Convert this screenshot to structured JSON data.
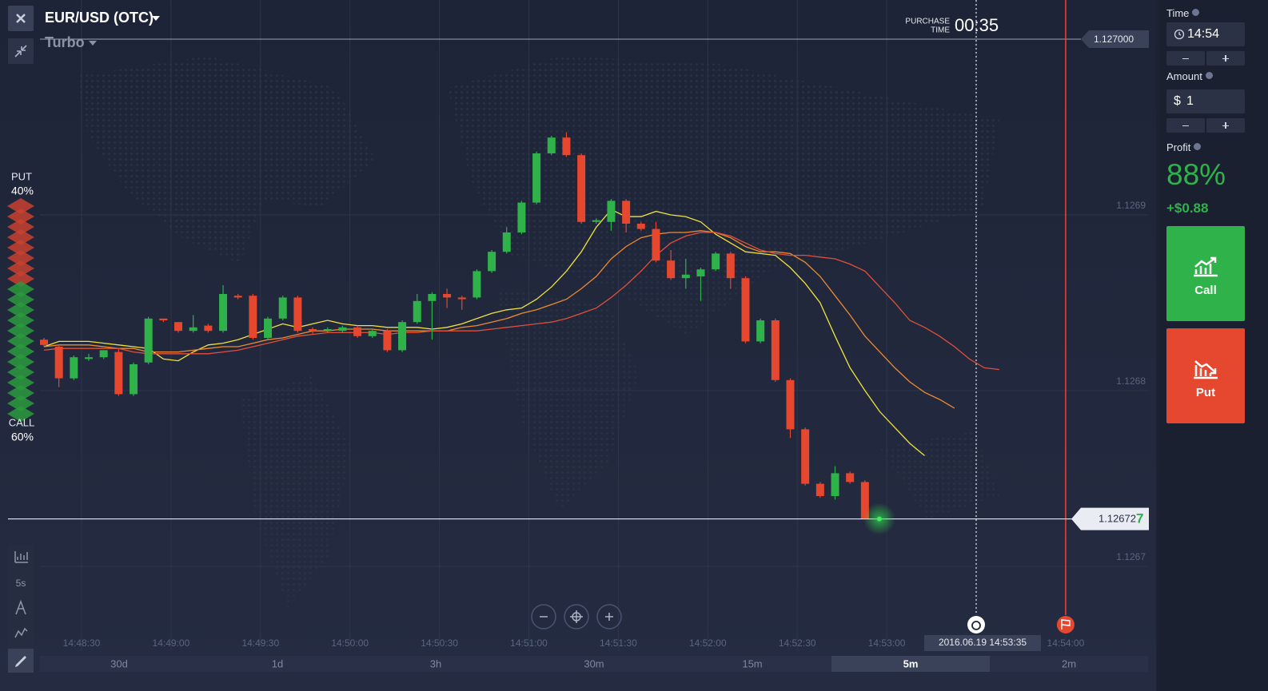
{
  "header": {
    "symbol": "EUR/USD (OTC)",
    "mode": "Turbo"
  },
  "sentiment": {
    "put_label": "PUT",
    "put_percent": "40%",
    "call_label": "CALL",
    "call_percent": "60%"
  },
  "toolbar": {
    "interval": "5s"
  },
  "timeframes": [
    "30d",
    "1d",
    "3h",
    "30m",
    "15m",
    "5m",
    "2m"
  ],
  "selected_timeframe": 5,
  "panel": {
    "time_label": "Time",
    "time_value": "14:54",
    "amount_label": "Amount",
    "currency": "$",
    "amount_value": "1",
    "profit_label": "Profit",
    "profit_percent": "88%",
    "profit_amount": "+$0.88",
    "call_button": "Call",
    "put_button": "Put"
  },
  "chart_data": {
    "type": "candlestick",
    "open": [
      1.126829,
      1.126825,
      1.126807,
      1.126818,
      1.126819,
      1.126822,
      1.126798,
      1.126816,
      1.126841,
      1.126839,
      1.126834,
      1.126837,
      1.126834,
      1.126854,
      1.126854,
      1.12683,
      1.126841,
      1.126853,
      1.126835,
      1.126834,
      1.126834,
      1.126836,
      1.126831,
      1.126834,
      1.126823,
      1.126839,
      1.126851,
      1.126855,
      1.126853,
      1.126853,
      1.126868,
      1.126879,
      1.12689,
      1.126907,
      1.126935,
      1.126944,
      1.126934,
      1.126896,
      1.126896,
      1.126908,
      1.126895,
      1.126892,
      1.126874,
      1.126864,
      1.126865,
      1.126869,
      1.126878,
      1.126864,
      1.126828,
      1.12684,
      1.126806,
      1.126778,
      1.126747,
      1.12674,
      1.126753,
      1.126748
    ],
    "high": [
      1.12683,
      1.126826,
      1.12682,
      1.126821,
      1.126823,
      1.126824,
      1.126816,
      1.126842,
      1.126841,
      1.126839,
      1.126843,
      1.126838,
      1.12686,
      1.126855,
      1.126855,
      1.126842,
      1.126854,
      1.126854,
      1.126836,
      1.126836,
      1.126837,
      1.126837,
      1.126835,
      1.126835,
      1.12684,
      1.126855,
      1.126856,
      1.126858,
      1.126854,
      1.126869,
      1.12688,
      1.126893,
      1.126908,
      1.126936,
      1.126945,
      1.126947,
      1.126935,
      1.126898,
      1.126909,
      1.126909,
      1.126896,
      1.126896,
      1.12688,
      1.126875,
      1.12687,
      1.126879,
      1.126879,
      1.126865,
      1.126841,
      1.126841,
      1.126807,
      1.126779,
      1.126748,
      1.126757,
      1.126754,
      1.126749
    ],
    "low": [
      1.126825,
      1.126802,
      1.126806,
      1.126817,
      1.126818,
      1.126797,
      1.126797,
      1.126815,
      1.126839,
      1.126833,
      1.126833,
      1.126833,
      1.126833,
      1.126852,
      1.126829,
      1.126829,
      1.12684,
      1.126833,
      1.126832,
      1.126833,
      1.126833,
      1.12683,
      1.12683,
      1.126822,
      1.126822,
      1.126838,
      1.126829,
      1.126847,
      1.126846,
      1.126852,
      1.126867,
      1.126878,
      1.126889,
      1.126906,
      1.126934,
      1.126933,
      1.126895,
      1.126895,
      1.126891,
      1.12689,
      1.126891,
      1.126873,
      1.126863,
      1.126858,
      1.126851,
      1.126868,
      1.126858,
      1.126827,
      1.126827,
      1.126805,
      1.126773,
      1.126746,
      1.126739,
      1.126738,
      1.126747,
      1.126727
    ],
    "close": [
      1.126826,
      1.126807,
      1.126819,
      1.126819,
      1.126823,
      1.126798,
      1.126815,
      1.126841,
      1.12684,
      1.126834,
      1.126836,
      1.126834,
      1.126855,
      1.126853,
      1.12683,
      1.126841,
      1.126853,
      1.126834,
      1.126834,
      1.126835,
      1.126836,
      1.126831,
      1.126834,
      1.126823,
      1.126839,
      1.126851,
      1.126855,
      1.126853,
      1.126852,
      1.126868,
      1.126879,
      1.12689,
      1.126907,
      1.126935,
      1.126944,
      1.126934,
      1.126896,
      1.126897,
      1.126908,
      1.126895,
      1.126892,
      1.126874,
      1.126864,
      1.126866,
      1.126869,
      1.126878,
      1.126864,
      1.126828,
      1.12684,
      1.126806,
      1.126778,
      1.126747,
      1.12674,
      1.126753,
      1.126748,
      1.126727
    ],
    "lines": [
      {
        "color": "#f0e23c",
        "values": [
          1.126825,
          1.126828,
          1.126828,
          1.126828,
          1.126827,
          1.126826,
          1.126825,
          1.126824,
          1.126818,
          1.126817,
          1.126822,
          1.126826,
          1.126827,
          1.126829,
          1.126832,
          1.126835,
          1.126838,
          1.126836,
          1.126838,
          1.12684,
          1.126838,
          1.126837,
          1.126837,
          1.126836,
          1.126836,
          1.126836,
          1.126835,
          1.126836,
          1.126838,
          1.126841,
          1.126844,
          1.126846,
          1.126847,
          1.126852,
          1.126859,
          1.126868,
          1.126879,
          1.126893,
          1.126903,
          1.126899,
          1.126899,
          1.126902,
          1.1269,
          1.126899,
          1.126896,
          1.126889,
          1.126884,
          1.126879,
          1.126878,
          1.126877,
          1.12687,
          1.126861,
          1.12685,
          1.126831,
          1.126813,
          1.1268,
          1.126788,
          1.126779,
          1.12677,
          1.126763,
          null,
          null,
          null,
          null,
          null
        ]
      },
      {
        "color": "#ee8a2e",
        "values": [
          1.126825,
          1.126826,
          1.126826,
          1.126826,
          1.126825,
          1.126824,
          1.126824,
          1.126822,
          1.126822,
          1.126822,
          1.126823,
          1.126824,
          1.126825,
          1.126825,
          1.126827,
          1.126829,
          1.12683,
          1.126832,
          1.126834,
          1.126834,
          1.126835,
          1.126835,
          1.126835,
          1.126834,
          1.126834,
          1.126834,
          1.126834,
          1.126834,
          1.126836,
          1.126837,
          1.126839,
          1.126841,
          1.126844,
          1.126846,
          1.126849,
          1.126852,
          1.126858,
          1.126865,
          1.126875,
          1.126882,
          1.126887,
          1.126889,
          1.12689,
          1.12689,
          1.126891,
          1.12689,
          1.126887,
          1.126882,
          1.126879,
          1.126879,
          1.126878,
          1.126873,
          1.126865,
          1.126854,
          1.126843,
          1.126831,
          1.126822,
          1.126813,
          1.126805,
          1.126799,
          1.126795,
          1.12679,
          null,
          null,
          null
        ]
      },
      {
        "color": "#e0503a",
        "values": [
          1.126823,
          1.126824,
          1.126824,
          1.126824,
          1.126824,
          1.126824,
          1.126822,
          1.126821,
          1.126821,
          1.126821,
          1.126821,
          1.126821,
          1.126822,
          1.126823,
          1.126825,
          1.126827,
          1.126829,
          1.126831,
          1.126832,
          1.126833,
          1.126833,
          1.126833,
          1.126833,
          1.126832,
          1.126833,
          1.126833,
          1.126834,
          1.126834,
          1.126834,
          1.126834,
          1.126835,
          1.126836,
          1.126837,
          1.126838,
          1.126839,
          1.126841,
          1.126844,
          1.126847,
          1.126853,
          1.12686,
          1.126868,
          1.126877,
          1.126884,
          1.126888,
          1.12689,
          1.12689,
          1.126888,
          1.126884,
          1.12688,
          1.126878,
          1.126877,
          1.126877,
          1.126876,
          1.126875,
          1.126872,
          1.126868,
          1.126859,
          1.12685,
          1.12684,
          1.126836,
          1.126831,
          1.126825,
          1.126818,
          1.126813,
          1.126812
        ]
      }
    ],
    "ylim": [
      1.12668,
      1.12702
    ],
    "yticks": [
      1.1269,
      1.1268,
      1.1267
    ],
    "xticks": [
      "14:48:30",
      "14:49:00",
      "14:49:30",
      "14:50:00",
      "14:50:30",
      "14:51:00",
      "14:51:30",
      "14:52:00",
      "14:52:30",
      "14:53:00",
      null,
      "14:54:00"
    ],
    "grid": true,
    "colors": {
      "up": "#2fb24a",
      "down": "#e6472f"
    },
    "price_line": {
      "value": 1.127,
      "label": "1.127000"
    },
    "current_price": 1.126727,
    "current_price_label": [
      "1.12672",
      "7"
    ],
    "purchase_time_label": [
      "PURCHASE",
      "TIME"
    ],
    "purchase_countdown": "00:35",
    "expiration_label": "2016.06.19 14:53:35"
  }
}
